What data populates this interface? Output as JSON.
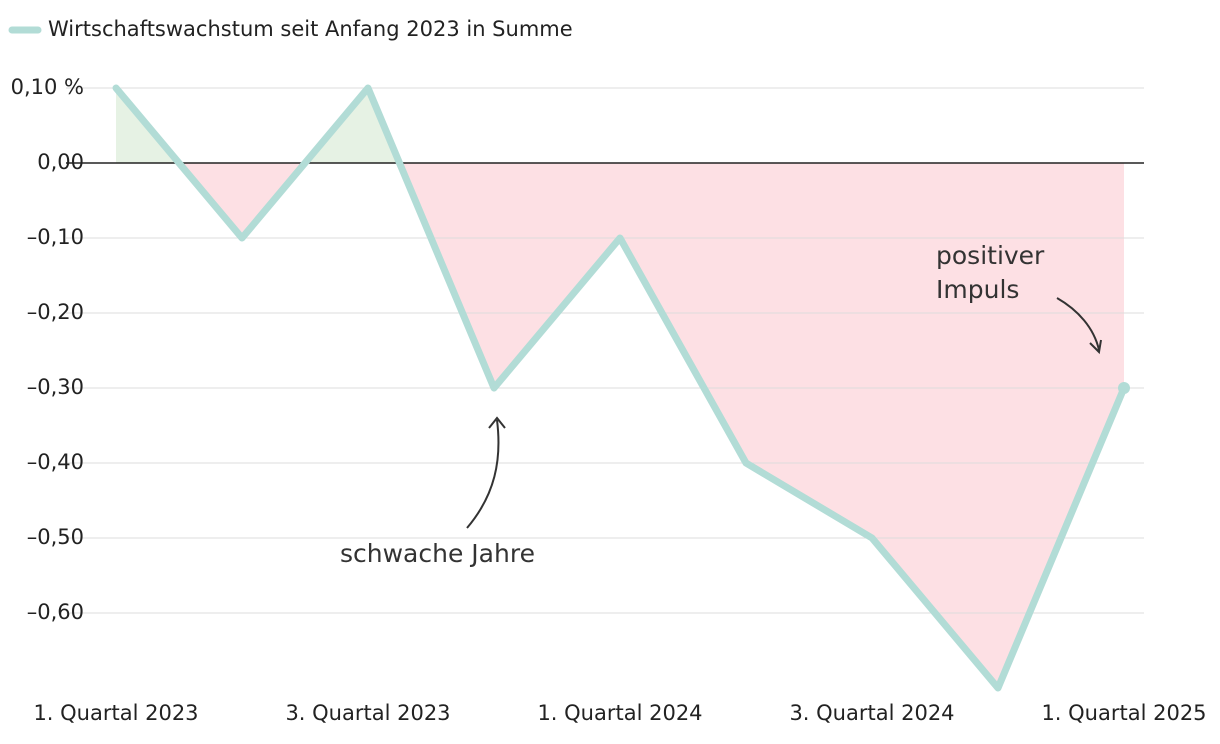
{
  "chart_data": {
    "type": "line",
    "legend": "Wirtschaftswachstum seit Anfang 2023 in Summe",
    "categories": [
      "1. Quartal 2023",
      null,
      "3. Quartal 2023",
      null,
      "1. Quartal 2024",
      null,
      "3. Quartal 2024",
      null,
      "1. Quartal 2025"
    ],
    "series": [
      {
        "name": "Wirtschaftswachstum seit Anfang 2023 in Summe",
        "color": "#b2dcd6",
        "values": [
          0.1,
          -0.1,
          0.1,
          -0.3,
          -0.1,
          -0.4,
          -0.5,
          -0.7,
          -0.3
        ]
      }
    ],
    "positive_fill": "#e6f2e4",
    "negative_fill": "#fde0e4",
    "ylim": [
      -0.7,
      0.1
    ],
    "yticks": [
      {
        "value": 0.1,
        "label": "0,10 %"
      },
      {
        "value": 0,
        "label": "0,00"
      },
      {
        "value": -0.1,
        "label": "–0,10"
      },
      {
        "value": -0.2,
        "label": "–0,20"
      },
      {
        "value": -0.3,
        "label": "–0,30"
      },
      {
        "value": -0.4,
        "label": "–0,40"
      },
      {
        "value": -0.5,
        "label": "–0,50"
      },
      {
        "value": -0.6,
        "label": "–0,60"
      }
    ],
    "grid": true,
    "annotations": [
      {
        "lines": [
          "schwache Jahre"
        ]
      },
      {
        "lines": [
          "positiver",
          "Impuls"
        ]
      }
    ]
  }
}
